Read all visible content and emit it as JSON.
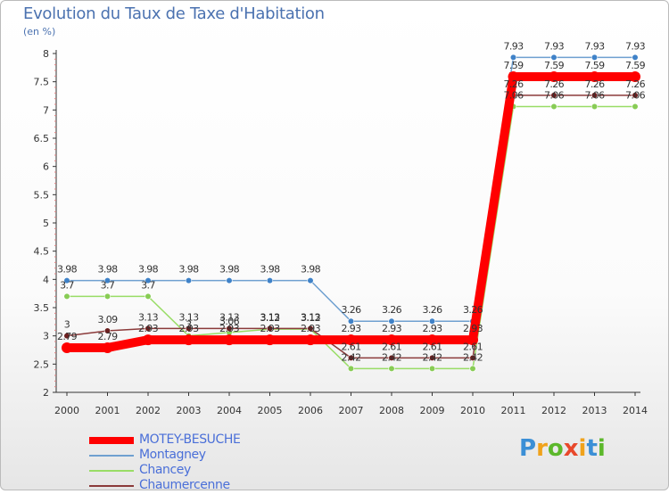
{
  "title": "Evolution du Taux de Taxe d'Habitation",
  "subtitle": "(en %)",
  "logo": {
    "text": "Proxiti",
    "letters": [
      {
        "ch": "P",
        "color": "#3b8fd6"
      },
      {
        "ch": "r",
        "color": "#f0a21b"
      },
      {
        "ch": "o",
        "color": "#5cb82b"
      },
      {
        "ch": "x",
        "color": "#e8482b"
      },
      {
        "ch": "i",
        "color": "#f0a21b"
      },
      {
        "ch": "t",
        "color": "#3b8fd6"
      },
      {
        "ch": "i",
        "color": "#5cb82b"
      }
    ]
  },
  "chart_data": {
    "type": "line",
    "x": [
      "2000",
      "2001",
      "2002",
      "2003",
      "2004",
      "2005",
      "2006",
      "2007",
      "2008",
      "2009",
      "2010",
      "2011",
      "2012",
      "2013",
      "2014"
    ],
    "ylim": [
      2,
      8
    ],
    "yticks": [
      "2",
      "2.5",
      "3",
      "3.5",
      "4",
      "4.5",
      "5",
      "5.5",
      "6",
      "6.5",
      "7",
      "7.5",
      "8"
    ],
    "grid": false,
    "legend_position": "bottom-left",
    "series": [
      {
        "name": "MOTEY-BESUCHE",
        "color": "#ff0000",
        "marker": "#ff0000",
        "values": [
          2.79,
          2.79,
          2.93,
          2.93,
          2.93,
          2.93,
          2.93,
          2.93,
          2.93,
          2.93,
          2.93,
          7.59,
          7.59,
          7.59,
          7.59
        ],
        "labels": [
          "2.79",
          "2.79",
          "2.93",
          "2.93",
          "2.93",
          "2.93",
          "2.93",
          "2.93",
          "2.93",
          "2.93",
          "2.93",
          "7.59",
          "7.59",
          "7.59",
          "7.59"
        ]
      },
      {
        "name": "Montagney",
        "color": "#6fa0d0",
        "marker": "#3f82c8",
        "values": [
          3.98,
          3.98,
          3.98,
          3.98,
          3.98,
          3.98,
          3.98,
          3.26,
          3.26,
          3.26,
          3.26,
          7.93,
          7.93,
          7.93,
          7.93
        ],
        "labels": [
          "3.98",
          "3.98",
          "3.98",
          "3.98",
          "3.98",
          "3.98",
          "3.98",
          "3.26",
          "3.26",
          "3.26",
          "3.26",
          "7.93",
          "7.93",
          "7.93",
          "7.93"
        ]
      },
      {
        "name": "Chancey",
        "color": "#99dd66",
        "marker": "#88cc55",
        "values": [
          3.7,
          3.7,
          3.7,
          3.0,
          3.06,
          3.12,
          3.12,
          2.42,
          2.42,
          2.42,
          2.42,
          7.06,
          7.06,
          7.06,
          7.06
        ],
        "labels": [
          "3.7",
          "3.7",
          "3.7",
          "3",
          "3.06",
          "3.12",
          "3.12",
          "2.42",
          "2.42",
          "2.42",
          "2.42",
          "7.06",
          "7.06",
          "7.06",
          "7.06"
        ]
      },
      {
        "name": "Chaumercenne",
        "color": "#8b3a3a",
        "marker": "#6b2020",
        "values": [
          3.0,
          3.09,
          3.13,
          3.13,
          3.13,
          3.13,
          3.13,
          2.61,
          2.61,
          2.61,
          2.61,
          7.26,
          7.26,
          7.26,
          7.26
        ],
        "labels": [
          "3",
          "3.09",
          "3.13",
          "3.13",
          "3.13",
          "3.13",
          "3.13",
          "2.61",
          "2.61",
          "2.61",
          "2.61",
          "7.26",
          "7.26",
          "7.26",
          "7.26"
        ]
      }
    ]
  }
}
